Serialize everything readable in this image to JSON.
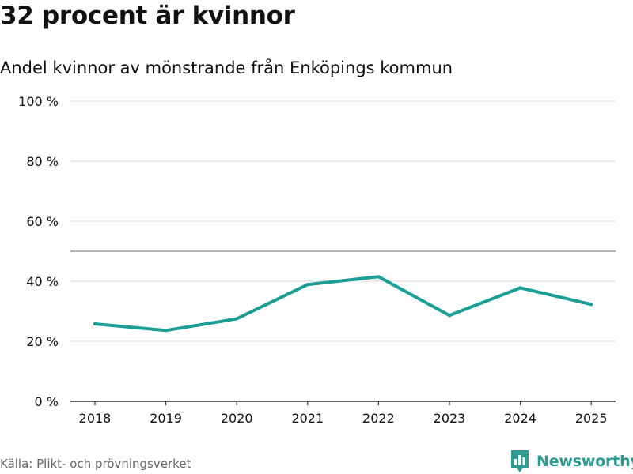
{
  "colors": {
    "line": "#1a9e96",
    "brand": "#2f9a8f",
    "grid": "#d9d9d9",
    "reference": "#888888",
    "axis": "#333333",
    "text": "#111111",
    "muted": "#666666"
  },
  "source_text": "Källa: Plikt- och prövningsverket",
  "brand": {
    "name": "Newsworthy",
    "icon": "bar-chart-speech-icon"
  },
  "chart_data": {
    "type": "line",
    "title": "32 procent är kvinnor",
    "subtitle": "Andel kvinnor av mönstrande från Enköpings kommun",
    "xlabel": "",
    "ylabel": "",
    "x": [
      "2018",
      "2019",
      "2020",
      "2021",
      "2022",
      "2023",
      "2024",
      "2025"
    ],
    "series": [
      {
        "name": "Andel kvinnor",
        "values": [
          25.8,
          23.6,
          27.5,
          38.9,
          41.5,
          28.6,
          37.8,
          32.3
        ]
      }
    ],
    "ylim": [
      0,
      100
    ],
    "yticks": [
      0,
      20,
      40,
      60,
      80,
      100
    ],
    "ytick_labels": [
      "0 %",
      "20 %",
      "40 %",
      "60 %",
      "80 %",
      "100 %"
    ],
    "reference_line": 50,
    "grid": true
  }
}
